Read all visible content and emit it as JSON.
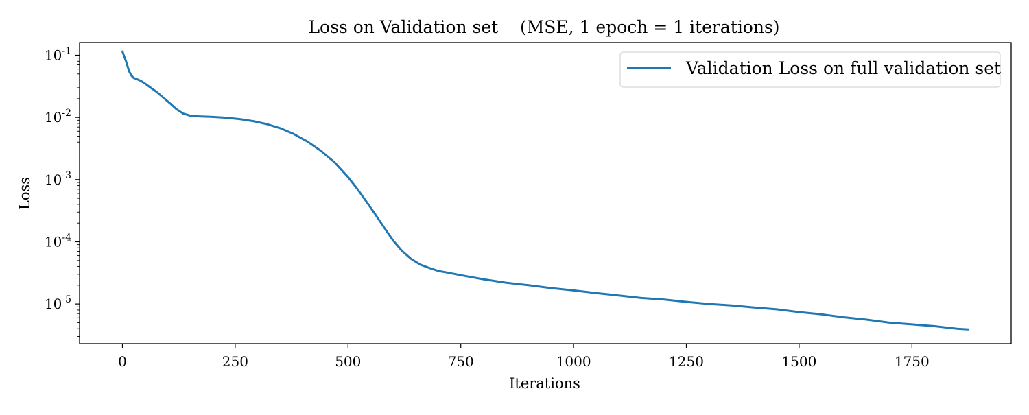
{
  "chart_data": {
    "type": "line",
    "title": "Loss on Validation set    (MSE, 1 epoch = 1 iterations)",
    "xlabel": "Iterations",
    "ylabel": "Loss",
    "y_scale": "log",
    "xlim": [
      -95,
      1970
    ],
    "ylim": [
      2.3e-06,
      0.16
    ],
    "grid": false,
    "legend_position": "top-right",
    "x_ticks": [
      0,
      250,
      500,
      750,
      1000,
      1250,
      1500,
      1750
    ],
    "x_tick_labels": [
      "0",
      "250",
      "500",
      "750",
      "1000",
      "1250",
      "1500",
      "1750"
    ],
    "y_ticks": [
      {
        "value": 0.1,
        "base": "10",
        "exp": "-1"
      },
      {
        "value": 0.01,
        "base": "10",
        "exp": "-2"
      },
      {
        "value": 0.001,
        "base": "10",
        "exp": "-3"
      },
      {
        "value": 0.0001,
        "base": "10",
        "exp": "-4"
      },
      {
        "value": 1e-05,
        "base": "10",
        "exp": "-5"
      }
    ],
    "series": [
      {
        "name": "Validation Loss on full validation set",
        "color": "#1f77b4",
        "x": [
          0,
          8,
          15,
          20,
          25,
          30,
          40,
          50,
          60,
          75,
          90,
          105,
          120,
          135,
          150,
          170,
          200,
          230,
          260,
          290,
          320,
          350,
          380,
          410,
          440,
          470,
          500,
          520,
          540,
          560,
          580,
          600,
          620,
          640,
          660,
          680,
          700,
          720,
          750,
          800,
          850,
          900,
          950,
          1000,
          1050,
          1100,
          1150,
          1200,
          1250,
          1300,
          1350,
          1400,
          1450,
          1500,
          1550,
          1600,
          1650,
          1700,
          1750,
          1800,
          1850,
          1875
        ],
        "y": [
          0.115,
          0.08,
          0.055,
          0.047,
          0.043,
          0.042,
          0.039,
          0.035,
          0.031,
          0.026,
          0.021,
          0.017,
          0.0135,
          0.0115,
          0.0107,
          0.0104,
          0.0102,
          0.0099,
          0.0094,
          0.0087,
          0.0078,
          0.0067,
          0.0054,
          0.0041,
          0.0029,
          0.0019,
          0.0011,
          0.00072,
          0.00045,
          0.00028,
          0.00017,
          0.000105,
          7.1e-05,
          5.3e-05,
          4.3e-05,
          3.8e-05,
          3.4e-05,
          3.2e-05,
          2.9e-05,
          2.5e-05,
          2.2e-05,
          2e-05,
          1.8e-05,
          1.65e-05,
          1.5e-05,
          1.37e-05,
          1.25e-05,
          1.18e-05,
          1.08e-05,
          1e-05,
          9.5e-06,
          8.8e-06,
          8.2e-06,
          7.4e-06,
          6.8e-06,
          6.1e-06,
          5.6e-06,
          5e-06,
          4.7e-06,
          4.4e-06,
          4e-06,
          3.9e-06
        ]
      }
    ]
  }
}
